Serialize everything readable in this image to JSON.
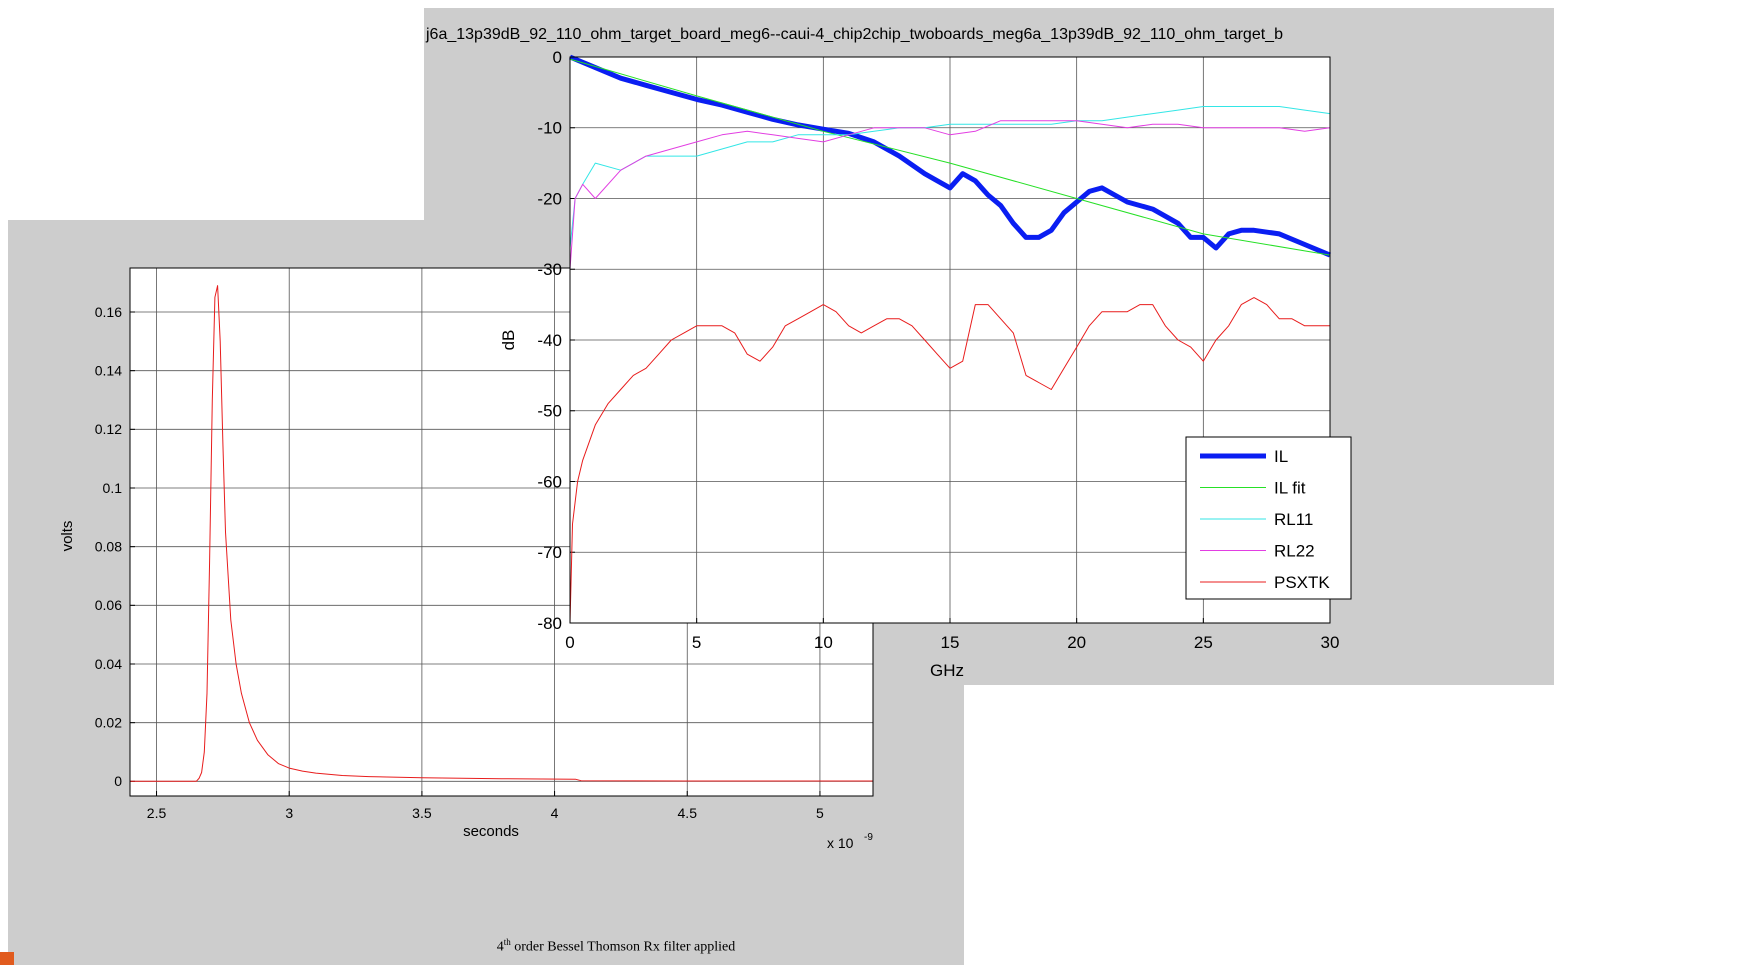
{
  "chart_data": [
    {
      "type": "line",
      "xlabel": "seconds",
      "ylabel": "volts",
      "x_multiplier_label": "x 10",
      "x_multiplier_exp": "-9",
      "xlim": [
        2.4,
        5.2
      ],
      "ylim": [
        -0.005,
        0.175
      ],
      "x_ticks": [
        2.5,
        3,
        3.5,
        4,
        4.5,
        5
      ],
      "x_tick_labels": [
        "2.5",
        "3",
        "3.5",
        "4",
        "4.5",
        "5"
      ],
      "y_ticks": [
        0,
        0.02,
        0.04,
        0.06,
        0.08,
        0.1,
        0.12,
        0.14,
        0.16
      ],
      "y_tick_labels": [
        "0",
        "0.02",
        "0.04",
        "0.06",
        "0.08",
        "0.1",
        "0.12",
        "0.14",
        "0.16"
      ],
      "grid": true,
      "caption": {
        "pre": "4",
        "sup": "th",
        "post": " order Bessel Thomson Rx filter applied"
      },
      "series": [
        {
          "color": "#e81c1c",
          "x": [
            2.4,
            2.65,
            2.66,
            2.67,
            2.68,
            2.69,
            2.7,
            2.71,
            2.72,
            2.73,
            2.74,
            2.75,
            2.76,
            2.78,
            2.8,
            2.82,
            2.85,
            2.88,
            2.92,
            2.96,
            3.0,
            3.05,
            3.1,
            3.2,
            3.3,
            3.5,
            3.8,
            4.08,
            4.1,
            4.5,
            5.0,
            5.2
          ],
          "y": [
            0,
            0,
            0.001,
            0.003,
            0.01,
            0.03,
            0.075,
            0.13,
            0.165,
            0.169,
            0.15,
            0.115,
            0.085,
            0.055,
            0.04,
            0.03,
            0.02,
            0.014,
            0.009,
            0.006,
            0.0045,
            0.0035,
            0.0028,
            0.002,
            0.0016,
            0.0012,
            0.0009,
            0.0007,
            0.0002,
            0.0001,
            0.0001,
            0.0001
          ]
        }
      ]
    },
    {
      "type": "line",
      "title": "j6a_13p39dB_92_110_ohm_target_board_meg6--caui-4_chip2chip_twoboards_meg6a_13p39dB_92_110_ohm_target_b",
      "xlabel": "GHz",
      "ylabel": "dB",
      "xlim": [
        0,
        30
      ],
      "ylim": [
        -80,
        0
      ],
      "x_ticks": [
        0,
        5,
        10,
        15,
        20,
        25,
        30
      ],
      "x_tick_labels": [
        "0",
        "5",
        "10",
        "15",
        "20",
        "25",
        "30"
      ],
      "y_ticks": [
        0,
        -10,
        -20,
        -30,
        -40,
        -50,
        -60,
        -70,
        -80
      ],
      "y_tick_labels": [
        "0",
        "-10",
        "-20",
        "-30",
        "-40",
        "-50",
        "-60",
        "-70",
        "-80"
      ],
      "grid": true,
      "legend_position": "lower-right",
      "series": [
        {
          "name": "IL",
          "color": "#0a1ef2",
          "width": 5,
          "x": [
            0,
            1,
            2,
            3,
            4,
            5,
            6,
            7,
            8,
            9,
            10,
            11,
            12,
            13,
            14,
            14.5,
            15,
            15.5,
            16,
            16.5,
            17,
            17.5,
            18,
            18.5,
            19,
            19.5,
            20,
            20.5,
            21,
            21.5,
            22,
            23,
            24,
            24.5,
            25,
            25.5,
            26,
            26.5,
            27,
            28,
            29,
            30
          ],
          "y": [
            0,
            -1.5,
            -3,
            -4,
            -5,
            -6,
            -6.8,
            -7.8,
            -8.8,
            -9.6,
            -10.2,
            -10.8,
            -12,
            -14,
            -16.5,
            -17.5,
            -18.5,
            -16.5,
            -17.5,
            -19.5,
            -21,
            -23.5,
            -25.5,
            -25.5,
            -24.5,
            -22,
            -20.5,
            -19,
            -18.5,
            -19.5,
            -20.5,
            -21.5,
            -23.5,
            -25.5,
            -25.5,
            -27,
            -25,
            -24.5,
            -24.5,
            -25,
            -26.5,
            -28
          ]
        },
        {
          "name": "IL fit",
          "color": "#26e026",
          "width": 1,
          "x": [
            0,
            5,
            10,
            15,
            20,
            25,
            30
          ],
          "y": [
            -0.3,
            -5.5,
            -10.5,
            -15,
            -20,
            -25,
            -28
          ]
        },
        {
          "name": "RL11",
          "color": "#33e6e6",
          "width": 1,
          "x": [
            0,
            0.2,
            0.5,
            1,
            2,
            3,
            4,
            5,
            6,
            7,
            8,
            9,
            10,
            11,
            12,
            13,
            14,
            15,
            16,
            17,
            18,
            19,
            20,
            21,
            22,
            23,
            24,
            25,
            26,
            27,
            28,
            29,
            30
          ],
          "y": [
            -27,
            -20,
            -18,
            -15,
            -16,
            -14,
            -14,
            -14,
            -13,
            -12,
            -12,
            -11,
            -11,
            -11,
            -10.5,
            -10,
            -10,
            -9.5,
            -9.5,
            -9.5,
            -9.5,
            -9.5,
            -9,
            -9,
            -8.5,
            -8,
            -7.5,
            -7,
            -7,
            -7,
            -7,
            -7.5,
            -8
          ]
        },
        {
          "name": "RL22",
          "color": "#e23ee2",
          "width": 1,
          "x": [
            0,
            0.2,
            0.5,
            1,
            2,
            3,
            4,
            5,
            6,
            7,
            8,
            9,
            10,
            11,
            12,
            13,
            14,
            15,
            16,
            17,
            18,
            19,
            20,
            21,
            22,
            23,
            24,
            25,
            26,
            27,
            28,
            29,
            30
          ],
          "y": [
            -30,
            -20,
            -18,
            -20,
            -16,
            -14,
            -13,
            -12,
            -11,
            -10.5,
            -11,
            -11.5,
            -12,
            -11,
            -10,
            -10,
            -10,
            -11,
            -10.5,
            -9,
            -9,
            -9,
            -9,
            -9.5,
            -10,
            -9.5,
            -9.5,
            -10,
            -10,
            -10,
            -10,
            -10.5,
            -10
          ]
        },
        {
          "name": "PSXTK",
          "color": "#e81c1c",
          "width": 1,
          "x": [
            0,
            0.1,
            0.3,
            0.5,
            1,
            1.5,
            2,
            2.5,
            3,
            3.5,
            4,
            4.5,
            5,
            5.5,
            6,
            6.5,
            7,
            7.5,
            8,
            8.5,
            9,
            9.5,
            10,
            10.5,
            11,
            11.5,
            12,
            12.5,
            13,
            13.5,
            14,
            14.5,
            15,
            15.5,
            16,
            16.5,
            17,
            17.5,
            18,
            18.5,
            19,
            19.5,
            20,
            20.5,
            21,
            21.5,
            22,
            22.5,
            23,
            23.5,
            24,
            24.5,
            25,
            25.5,
            26,
            26.5,
            27,
            27.5,
            28,
            28.5,
            29,
            29.5,
            30
          ],
          "y": [
            -80,
            -66,
            -60,
            -57,
            -52,
            -49,
            -47,
            -45,
            -44,
            -42,
            -40,
            -39,
            -38,
            -38,
            -38,
            -39,
            -42,
            -43,
            -41,
            -38,
            -37,
            -36,
            -35,
            -36,
            -38,
            -39,
            -38,
            -37,
            -37,
            -38,
            -40,
            -42,
            -44,
            -43,
            -35,
            -35,
            -37,
            -39,
            -45,
            -46,
            -47,
            -44,
            -41,
            -38,
            -36,
            -36,
            -36,
            -35,
            -35,
            -38,
            -40,
            -41,
            -43,
            -40,
            -38,
            -35,
            -34,
            -35,
            -37,
            -37,
            -38,
            -38,
            -38
          ]
        }
      ]
    }
  ]
}
